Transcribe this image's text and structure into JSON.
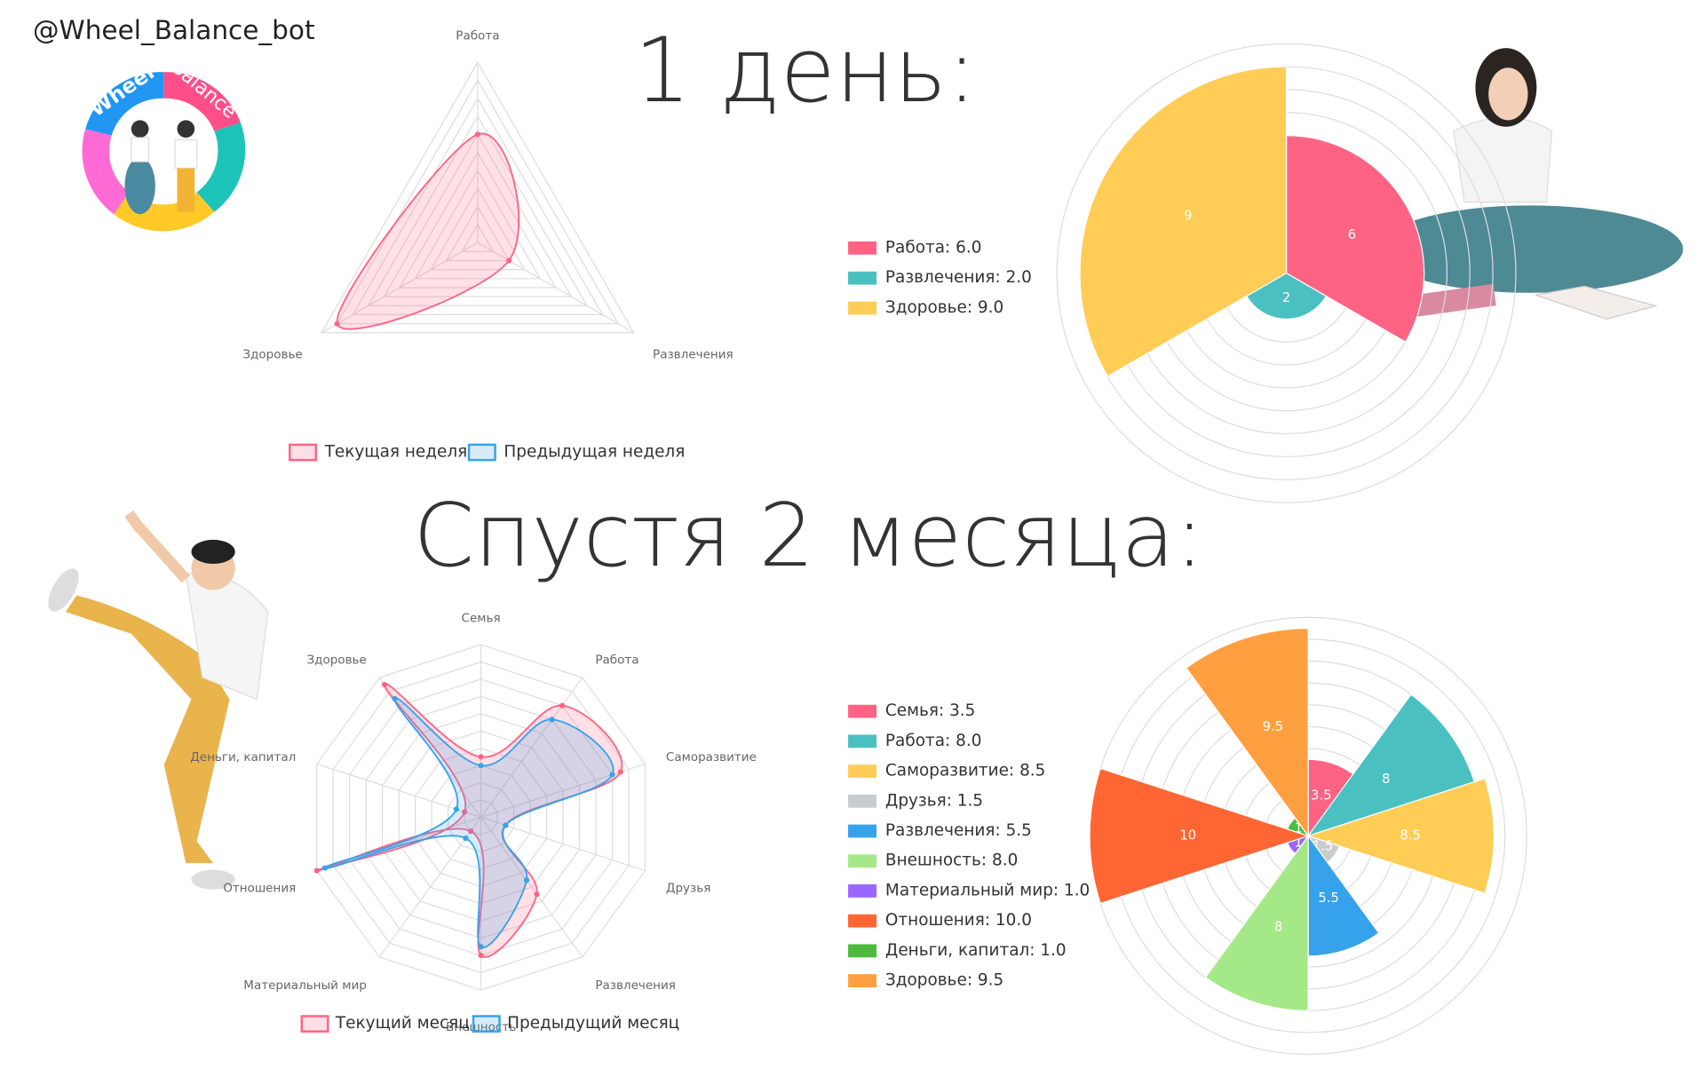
{
  "handle": "@Wheel_Balance_bot",
  "logo": {
    "top": "Wheel",
    "side": "Balance"
  },
  "headings": [
    "1 день:",
    "Спустя 2 месяца:"
  ],
  "chart_data": [
    {
      "type": "radar",
      "categories": [
        "Работа",
        "Развлечения",
        "Здоровье"
      ],
      "series": [
        {
          "name": "Текущая неделя",
          "color": "#ff6384",
          "values": [
            6,
            2,
            9
          ]
        },
        {
          "name": "Предыдущая неделя",
          "color": "#36a2eb",
          "values": [
            null,
            null,
            null
          ]
        }
      ],
      "rlim": [
        0,
        10
      ],
      "rticks": [
        1,
        2,
        3,
        4,
        5,
        6,
        7,
        8,
        9,
        10
      ]
    },
    {
      "type": "polarArea",
      "legend": [
        "Работа: 6.0",
        "Развлечения: 2.0",
        "Здоровье: 9.0"
      ],
      "values": [
        6,
        2,
        9
      ],
      "colors": [
        "#ff6384",
        "#4bc0c0",
        "#ffcd56"
      ],
      "rlim": [
        0,
        10
      ],
      "rticks": [
        1,
        2,
        3,
        4,
        5,
        6,
        7,
        8,
        9,
        10
      ]
    },
    {
      "type": "radar",
      "categories": [
        "Семья",
        "Работа",
        "Саморазвитие",
        "Друзья",
        "Развлечения",
        "Внешность",
        "Материальный мир",
        "Отношения",
        "Деньги, капитал",
        "Здоровье"
      ],
      "series": [
        {
          "name": "Текущий месяц",
          "color": "#ff6384",
          "values": [
            3.5,
            8,
            8.5,
            1.5,
            5.5,
            8,
            1,
            10,
            1,
            9.5
          ]
        },
        {
          "name": "Предыдущий месяц",
          "color": "#36a2eb",
          "values": [
            3,
            7,
            8,
            1.5,
            4.5,
            7.5,
            1.5,
            9.5,
            1.5,
            8.5
          ]
        }
      ],
      "rlim": [
        0,
        10
      ],
      "rticks": [
        1,
        2,
        3,
        4,
        5,
        6,
        7,
        8,
        9,
        10
      ]
    },
    {
      "type": "polarArea",
      "legend": [
        "Семья: 3.5",
        "Работа: 8.0",
        "Саморазвитие: 8.5",
        "Друзья: 1.5",
        "Развлечения: 5.5",
        "Внешность: 8.0",
        "Материальный мир: 1.0",
        "Отношения: 10.0",
        "Деньги, капитал: 1.0",
        "Здоровье: 9.5"
      ],
      "values": [
        3.5,
        8,
        8.5,
        1.5,
        5.5,
        8,
        1,
        10,
        1,
        9.5
      ],
      "colors": [
        "#ff6384",
        "#4bc0c0",
        "#ffcd56",
        "#c9cbcf",
        "#36a2eb",
        "#a5e887",
        "#9966ff",
        "#ff6633",
        "#4cbb3c",
        "#ff9f40"
      ],
      "rlim": [
        0,
        10
      ],
      "rticks": [
        1,
        2,
        3,
        4,
        5,
        6,
        7,
        8,
        9,
        10
      ]
    }
  ]
}
